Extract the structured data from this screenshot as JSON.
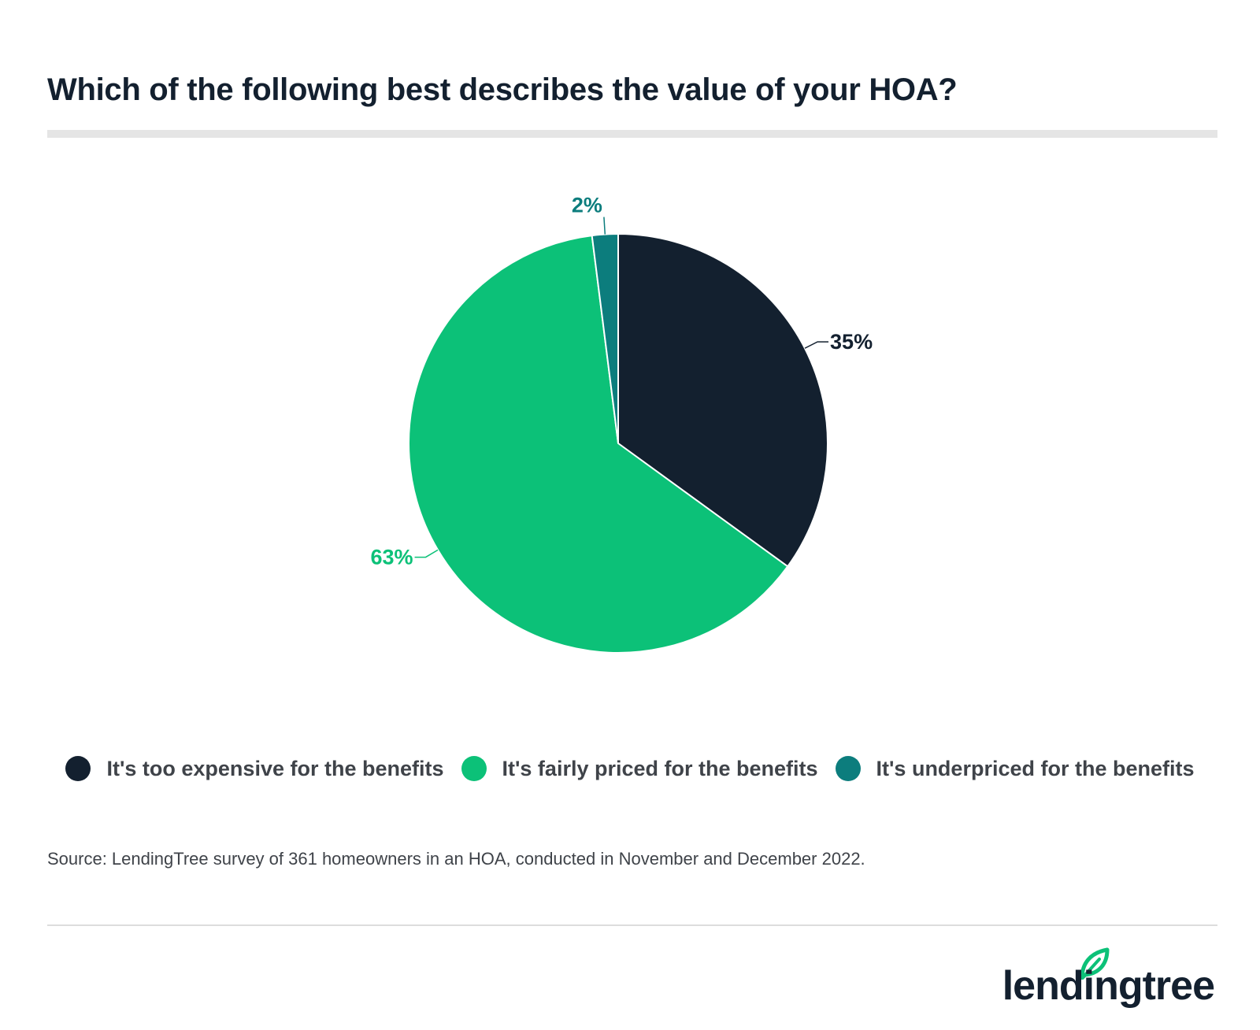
{
  "title": "Which of the following best describes the value of your HOA?",
  "source": "Source: LendingTree survey of 361 homeowners in an HOA, conducted in November and December 2022.",
  "logo": {
    "text": "lendingtree",
    "icon": "leaf-icon"
  },
  "chart_data": {
    "type": "pie",
    "title": "Which of the following best describes the value of your HOA?",
    "legend_position": "bottom",
    "slices": [
      {
        "label": "It's too expensive for the benefits",
        "value": 35,
        "display": "35%",
        "color": "#13202f"
      },
      {
        "label": "It's fairly priced for the benefits",
        "value": 63,
        "display": "63%",
        "color": "#0cc178"
      },
      {
        "label": "It's underpriced for the benefits",
        "value": 2,
        "display": "2%",
        "color": "#0c7d7d"
      }
    ]
  }
}
